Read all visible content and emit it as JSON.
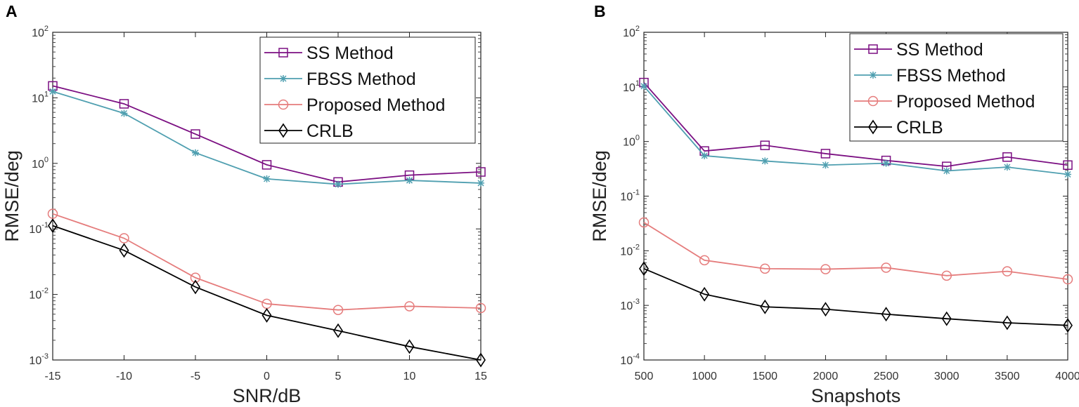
{
  "chart_data": [
    {
      "panel_label": "A",
      "type": "line",
      "xlabel": "SNR/dB",
      "ylabel": "RMSE/deg",
      "yscale": "log",
      "x": [
        -15,
        -10,
        -5,
        0,
        5,
        10,
        15
      ],
      "xlim": [
        -15,
        15
      ],
      "xticks": [
        "-15",
        "-10",
        "-5",
        "0",
        "5",
        "10",
        "15"
      ],
      "ylim_exp": [
        -3,
        2
      ],
      "yticks": [
        {
          "base": "10",
          "exp": "-3"
        },
        {
          "base": "10",
          "exp": "-2"
        },
        {
          "base": "10",
          "exp": "-1"
        },
        {
          "base": "10",
          "exp": "0"
        },
        {
          "base": "10",
          "exp": "1"
        },
        {
          "base": "10",
          "exp": "2"
        }
      ],
      "legend_position": "top-right",
      "series": [
        {
          "name": "SS Method",
          "color": "#7b0f82",
          "marker": "square",
          "values": [
            15.2,
            8.1,
            2.8,
            0.95,
            0.52,
            0.66,
            0.74
          ]
        },
        {
          "name": "FBSS Method",
          "color": "#4f9fb0",
          "marker": "asterisk",
          "values": [
            12.5,
            5.8,
            1.45,
            0.58,
            0.48,
            0.55,
            0.5
          ]
        },
        {
          "name": "Proposed Method",
          "color": "#e57c7c",
          "marker": "circle",
          "values": [
            0.17,
            0.072,
            0.018,
            0.0072,
            0.0058,
            0.0066,
            0.0062
          ]
        },
        {
          "name": "CRLB",
          "color": "#000000",
          "marker": "diamond",
          "values": [
            0.112,
            0.047,
            0.013,
            0.0048,
            0.0028,
            0.0016,
            0.001
          ]
        }
      ]
    },
    {
      "panel_label": "B",
      "type": "line",
      "xlabel": "Snapshots",
      "ylabel": "RMSE/deg",
      "yscale": "log",
      "x": [
        500,
        1000,
        1500,
        2000,
        2500,
        3000,
        3500,
        4000
      ],
      "xlim": [
        500,
        4000
      ],
      "xticks": [
        "500",
        "1000",
        "1500",
        "2000",
        "2500",
        "3000",
        "3500",
        "4000"
      ],
      "ylim_exp": [
        -4,
        2
      ],
      "yticks": [
        {
          "base": "10",
          "exp": "-4"
        },
        {
          "base": "10",
          "exp": "-3"
        },
        {
          "base": "10",
          "exp": "-2"
        },
        {
          "base": "10",
          "exp": "-1"
        },
        {
          "base": "10",
          "exp": "0"
        },
        {
          "base": "10",
          "exp": "1"
        },
        {
          "base": "10",
          "exp": "2"
        }
      ],
      "legend_position": "top-right",
      "series": [
        {
          "name": "SS Method",
          "color": "#7b0f82",
          "marker": "square",
          "values": [
            12,
            0.67,
            0.85,
            0.6,
            0.45,
            0.35,
            0.52,
            0.37
          ]
        },
        {
          "name": "FBSS Method",
          "color": "#4f9fb0",
          "marker": "asterisk",
          "values": [
            10.3,
            0.55,
            0.44,
            0.37,
            0.4,
            0.29,
            0.34,
            0.25
          ]
        },
        {
          "name": "Proposed Method",
          "color": "#e57c7c",
          "marker": "circle",
          "values": [
            0.033,
            0.0067,
            0.0047,
            0.0046,
            0.0049,
            0.0035,
            0.0042,
            0.003
          ]
        },
        {
          "name": "CRLB",
          "color": "#000000",
          "marker": "diamond",
          "values": [
            0.0047,
            0.0016,
            0.00094,
            0.00085,
            0.00069,
            0.00057,
            0.00048,
            0.00043
          ]
        }
      ]
    }
  ]
}
